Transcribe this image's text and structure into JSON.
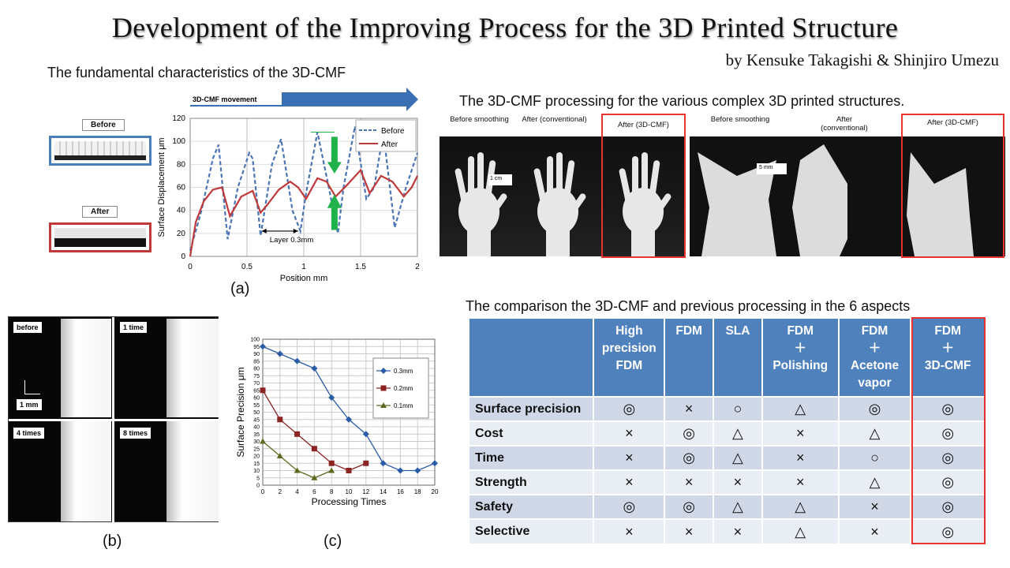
{
  "title": "Development of the Improving Process for the 3D Printed Structure",
  "authors": "by Kensuke Takagishi & Shinjiro Umezu",
  "section_a": {
    "heading": "The fundamental characteristics of the 3D-CMF",
    "before_label": "Before",
    "after_label": "After",
    "panel_label": "(a)",
    "arrow_label": "3D-CMF movement",
    "layer_label": "Layer 0.3mm"
  },
  "section_b": {
    "labels": [
      "before",
      "1 time",
      "4 times",
      "8 times"
    ],
    "scale": "1 mm",
    "panel_label": "(b)"
  },
  "section_c": {
    "panel_label": "(c)"
  },
  "section_d": {
    "heading": "The 3D-CMF processing for the various complex 3D printed structures.",
    "hands": {
      "before": "Before smoothing",
      "conventional": "After (conventional)",
      "cmf": "After (3D-CMF)",
      "scale": "1 cm"
    },
    "dogs": {
      "before": "Before smoothing",
      "conventional": "After (conventional)",
      "cmf": "After (3D-CMF)",
      "scale": "5 mm"
    }
  },
  "comparison": {
    "heading": "The comparison the 3D-CMF and previous processing in the 6 aspects",
    "columns": [
      [
        "High",
        "precision",
        "FDM"
      ],
      [
        "FDM"
      ],
      [
        "SLA"
      ],
      [
        "FDM",
        "＋",
        "Polishing"
      ],
      [
        "FDM",
        "＋",
        "Acetone",
        "vapor"
      ],
      [
        "FDM",
        "＋",
        "3D-CMF"
      ]
    ],
    "rows": [
      {
        "aspect": "Surface precision",
        "values": [
          "◎",
          "×",
          "○",
          "△",
          "◎",
          "◎"
        ]
      },
      {
        "aspect": "Cost",
        "values": [
          "×",
          "◎",
          "△",
          "×",
          "△",
          "◎"
        ]
      },
      {
        "aspect": "Time",
        "values": [
          "×",
          "◎",
          "△",
          "×",
          "○",
          "◎"
        ]
      },
      {
        "aspect": "Strength",
        "values": [
          "×",
          "×",
          "×",
          "×",
          "△",
          "◎"
        ]
      },
      {
        "aspect": "Safety",
        "values": [
          "◎",
          "◎",
          "△",
          "△",
          "×",
          "◎"
        ]
      },
      {
        "aspect": "Selective",
        "values": [
          "×",
          "×",
          "×",
          "△",
          "×",
          "◎"
        ]
      }
    ]
  },
  "chart_data": [
    {
      "type": "line",
      "xlabel": "Position mm",
      "ylabel": "Surface Displacement μm",
      "xlim": [
        0,
        2
      ],
      "ylim": [
        0,
        120
      ],
      "xticks": [
        0,
        0.5,
        1,
        1.5,
        2
      ],
      "yticks": [
        0,
        20,
        40,
        60,
        80,
        100,
        120
      ],
      "legend_position": "top-right",
      "series": [
        {
          "name": "Before",
          "style": "dashed",
          "color": "#4a75b5",
          "x": [
            0,
            0.1,
            0.2,
            0.25,
            0.33,
            0.42,
            0.52,
            0.55,
            0.62,
            0.72,
            0.8,
            0.9,
            0.97,
            1.02,
            1.12,
            1.22,
            1.3,
            1.35,
            1.45,
            1.55,
            1.62,
            1.7,
            1.8,
            1.9,
            2.0
          ],
          "y": [
            5,
            40,
            85,
            97,
            15,
            60,
            90,
            85,
            18,
            80,
            102,
            40,
            22,
            55,
            108,
            60,
            20,
            60,
            113,
            50,
            60,
            108,
            25,
            60,
            90
          ]
        },
        {
          "name": "After",
          "style": "solid",
          "color": "#c0393a",
          "x": [
            0,
            0.05,
            0.12,
            0.2,
            0.28,
            0.35,
            0.45,
            0.55,
            0.62,
            0.68,
            0.78,
            0.88,
            0.95,
            1.02,
            1.12,
            1.2,
            1.28,
            1.38,
            1.5,
            1.58,
            1.68,
            1.78,
            1.88,
            1.95,
            2.0
          ],
          "y": [
            0,
            30,
            48,
            58,
            60,
            35,
            52,
            57,
            38,
            45,
            58,
            65,
            60,
            50,
            68,
            65,
            52,
            62,
            75,
            55,
            70,
            65,
            52,
            60,
            70
          ]
        }
      ]
    },
    {
      "type": "line",
      "xlabel": "Processing Times",
      "ylabel": "Surface Precision μm",
      "xlim": [
        0,
        20
      ],
      "ylim": [
        0,
        100
      ],
      "xticks": [
        0,
        2,
        4,
        6,
        8,
        10,
        12,
        14,
        16,
        18,
        20
      ],
      "yticks": [
        0,
        5,
        10,
        15,
        20,
        25,
        30,
        35,
        40,
        45,
        50,
        55,
        60,
        65,
        70,
        75,
        80,
        85,
        90,
        95,
        100
      ],
      "legend_position": "top-right",
      "series": [
        {
          "name": "0.3mm",
          "marker": "diamond",
          "color": "#2a5ca8",
          "x": [
            0,
            2,
            4,
            6,
            8,
            10,
            12,
            14,
            16,
            18,
            20
          ],
          "y": [
            95,
            90,
            85,
            80,
            60,
            45,
            35,
            15,
            10,
            10,
            15
          ]
        },
        {
          "name": "0.2mm",
          "marker": "square",
          "color": "#8b2323",
          "x": [
            0,
            2,
            4,
            6,
            8,
            10,
            12
          ],
          "y": [
            65,
            45,
            35,
            25,
            15,
            10,
            15
          ]
        },
        {
          "name": "0.1mm",
          "marker": "triangle",
          "color": "#5a6b1f",
          "x": [
            0,
            2,
            4,
            6,
            8
          ],
          "y": [
            30,
            20,
            10,
            5,
            10
          ]
        }
      ]
    }
  ],
  "colors": {
    "accent_red": "#e8322f",
    "header_blue": "#4f81bd",
    "row_dark": "#d0d8e8",
    "row_light": "#e9edf4",
    "arrow_blue": "#3a6fb4",
    "green": "#21b24b"
  }
}
